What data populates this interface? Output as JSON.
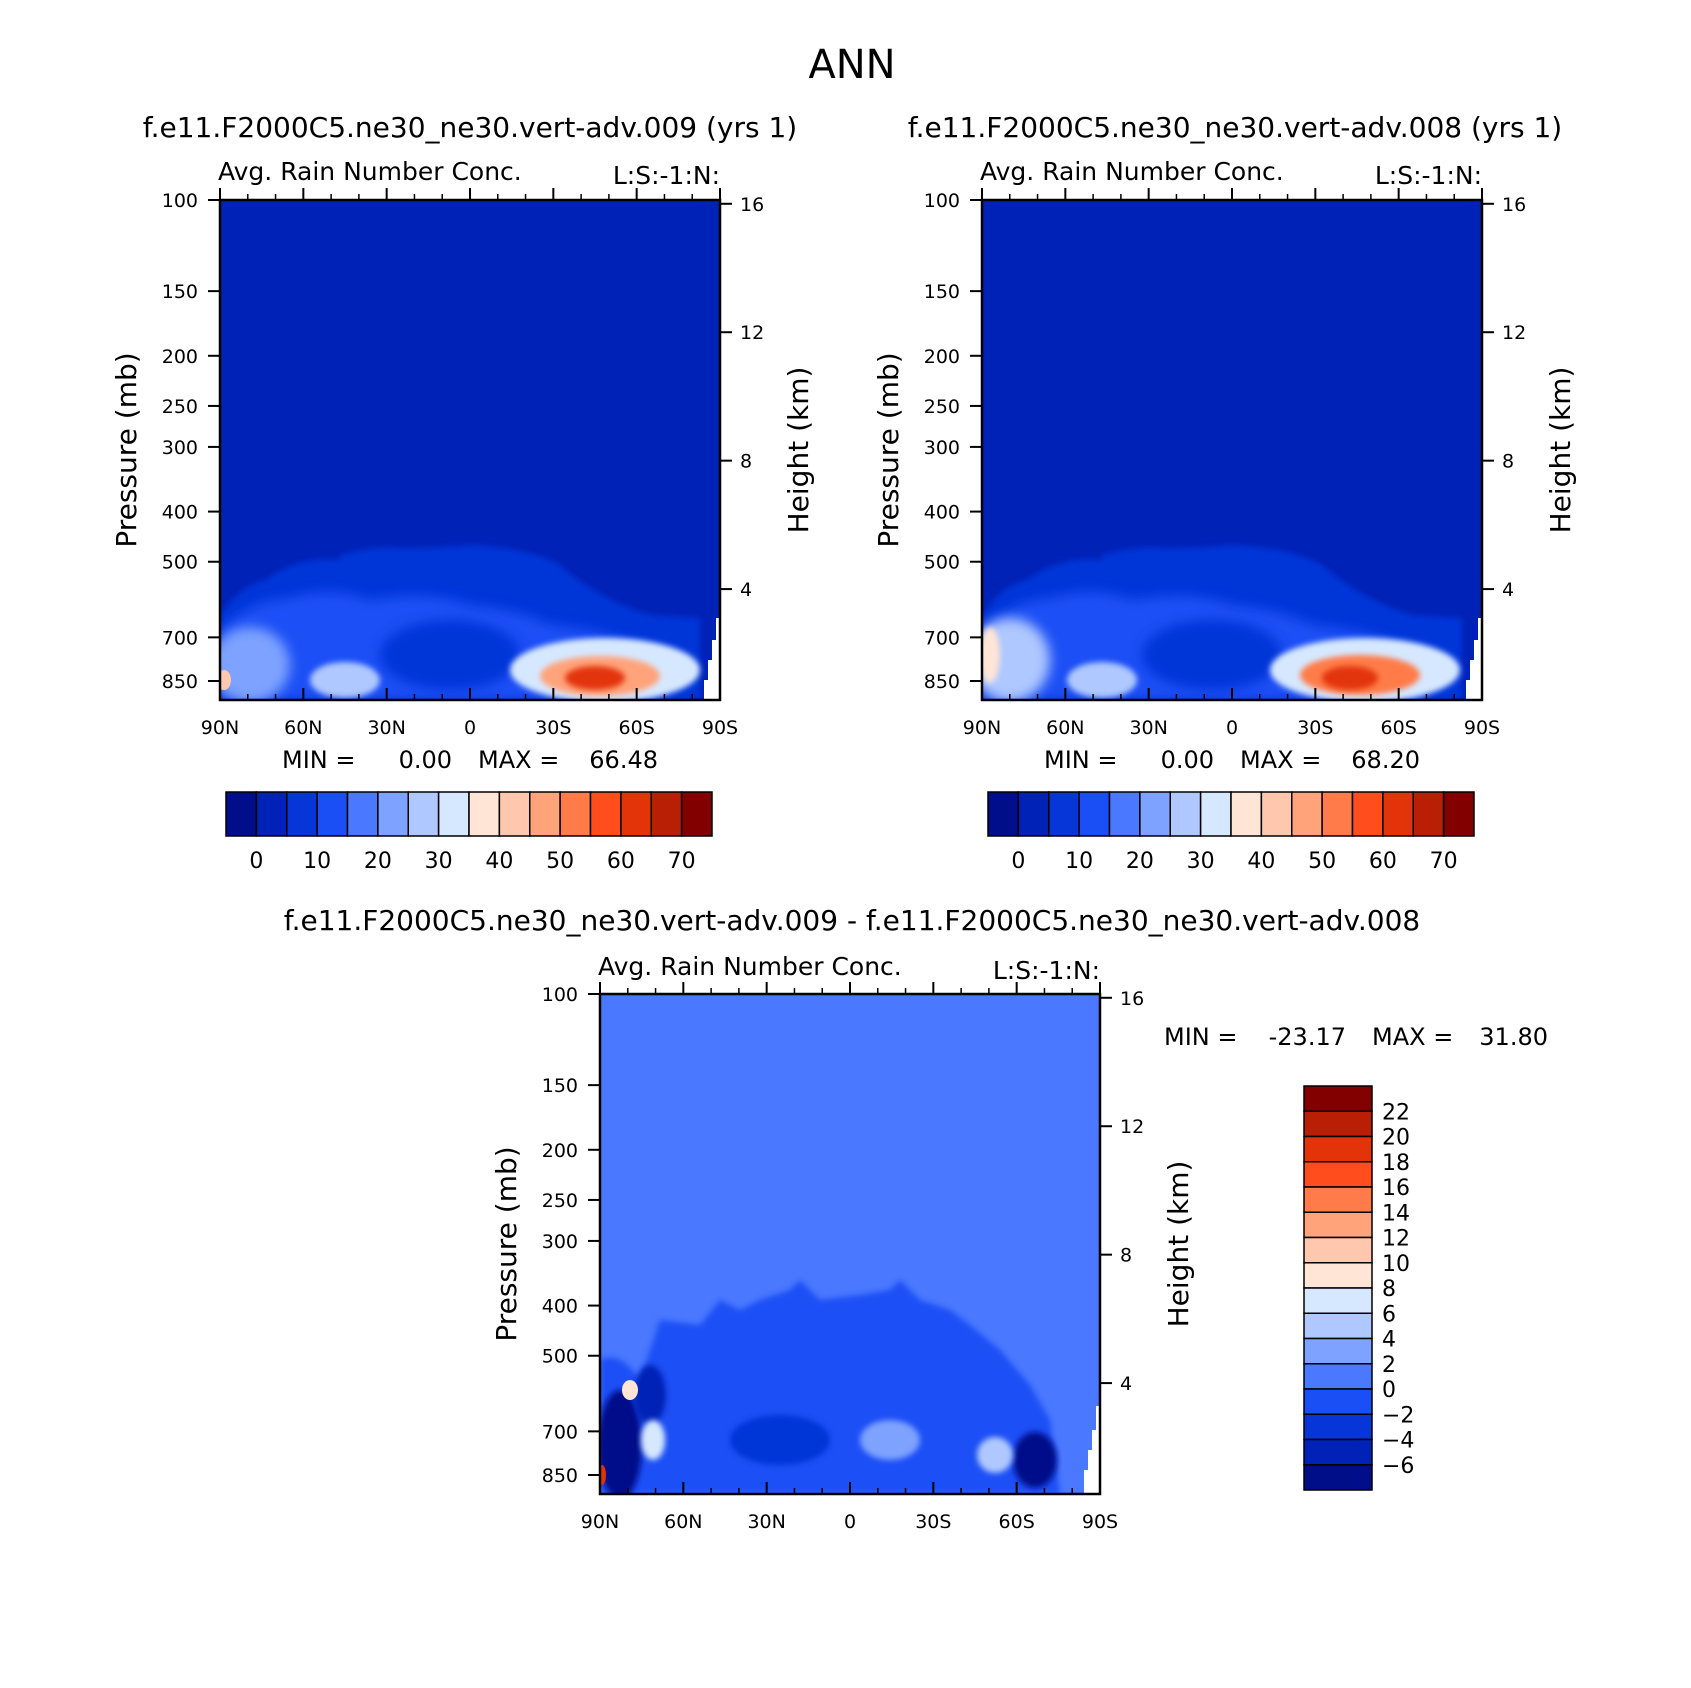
{
  "figure_title": "ANN",
  "chart_data": [
    {
      "type": "heatmap",
      "title": "f.e11.F2000C5.ne30_ne30.vert-adv.009 (yrs 1)",
      "subtitle": "Avg. Rain Number Conc.",
      "units_label": "L:S:-1:N:",
      "xlabel": "",
      "ylabel": "Pressure (mb)",
      "y2label": "Height (km)",
      "x_ticks": [
        "90N",
        "60N",
        "30N",
        "0",
        "30S",
        "60S",
        "90S"
      ],
      "y_ticks": [
        "100",
        "150",
        "200",
        "250",
        "300",
        "400",
        "500",
        "700",
        "850"
      ],
      "y2_ticks": [
        "16",
        "12",
        "8",
        "4"
      ],
      "ylim": [
        100,
        925
      ],
      "y_scale": "log",
      "stats": {
        "min_label": "MIN =",
        "min": "0.00",
        "max_label": "MAX =",
        "max": "66.48"
      },
      "colorbar": {
        "orientation": "horizontal",
        "labels": [
          "0",
          "10",
          "20",
          "30",
          "40",
          "50",
          "60",
          "70"
        ],
        "colors": [
          "#000e8a",
          "#0022b6",
          "#0635d8",
          "#1a4ff5",
          "#4a78ff",
          "#7da2ff",
          "#afc8ff",
          "#d6e8ff",
          "#ffe5d5",
          "#ffc7ad",
          "#ffa37a",
          "#ff7b49",
          "#ff4d1e",
          "#e33409",
          "#b81f05",
          "#820000"
        ]
      },
      "features": [
        {
          "lat": -45,
          "p": 850,
          "value": 66.48
        },
        {
          "lat": 85,
          "p": 850,
          "value": 38
        },
        {
          "lat": 55,
          "p": 850,
          "value": 32
        }
      ]
    },
    {
      "type": "heatmap",
      "title": "f.e11.F2000C5.ne30_ne30.vert-adv.008 (yrs 1)",
      "subtitle": "Avg. Rain Number Conc.",
      "units_label": "L:S:-1:N:",
      "xlabel": "",
      "ylabel": "Pressure (mb)",
      "y2label": "Height (km)",
      "x_ticks": [
        "90N",
        "60N",
        "30N",
        "0",
        "30S",
        "60S",
        "90S"
      ],
      "y_ticks": [
        "100",
        "150",
        "200",
        "250",
        "300",
        "400",
        "500",
        "700",
        "850"
      ],
      "y2_ticks": [
        "16",
        "12",
        "8",
        "4"
      ],
      "ylim": [
        100,
        925
      ],
      "y_scale": "log",
      "stats": {
        "min_label": "MIN =",
        "min": "0.00",
        "max_label": "MAX =",
        "max": "68.20"
      },
      "colorbar": {
        "orientation": "horizontal",
        "labels": [
          "0",
          "10",
          "20",
          "30",
          "40",
          "50",
          "60",
          "70"
        ],
        "colors": [
          "#000e8a",
          "#0022b6",
          "#0635d8",
          "#1a4ff5",
          "#4a78ff",
          "#7da2ff",
          "#afc8ff",
          "#d6e8ff",
          "#ffe5d5",
          "#ffc7ad",
          "#ffa37a",
          "#ff7b49",
          "#ff4d1e",
          "#e33409",
          "#b81f05",
          "#820000"
        ]
      },
      "features": [
        {
          "lat": -42,
          "p": 850,
          "value": 68.2
        },
        {
          "lat": 88,
          "p": 780,
          "value": 40
        },
        {
          "lat": 55,
          "p": 850,
          "value": 32
        }
      ]
    },
    {
      "type": "heatmap",
      "title": "f.e11.F2000C5.ne30_ne30.vert-adv.009 - f.e11.F2000C5.ne30_ne30.vert-adv.008",
      "subtitle": "Avg. Rain Number Conc.",
      "units_label": "L:S:-1:N:",
      "xlabel": "",
      "ylabel": "Pressure (mb)",
      "y2label": "Height (km)",
      "x_ticks": [
        "90N",
        "60N",
        "30N",
        "0",
        "30S",
        "60S",
        "90S"
      ],
      "y_ticks": [
        "100",
        "150",
        "200",
        "250",
        "300",
        "400",
        "500",
        "700",
        "850"
      ],
      "y2_ticks": [
        "16",
        "12",
        "8",
        "4"
      ],
      "ylim": [
        100,
        925
      ],
      "y_scale": "log",
      "stats": {
        "min_label": "MIN =",
        "min": "-23.17",
        "max_label": "MAX =",
        "max": "31.80"
      },
      "colorbar": {
        "orientation": "vertical",
        "labels": [
          "22",
          "20",
          "18",
          "16",
          "14",
          "12",
          "10",
          "8",
          "6",
          "4",
          "2",
          "0",
          "-2",
          "-4",
          "-6"
        ],
        "colors": [
          "#820000",
          "#b81f05",
          "#e33409",
          "#ff4d1e",
          "#ff7b49",
          "#ffa37a",
          "#ffc7ad",
          "#ffe5d5",
          "#d6e8ff",
          "#afc8ff",
          "#7da2ff",
          "#4a78ff",
          "#1a4ff5",
          "#0635d8",
          "#0022b6",
          "#000e8a"
        ]
      },
      "features": [
        {
          "lat": 85,
          "p": 800,
          "value": -23.17
        },
        {
          "lat": -68,
          "p": 830,
          "value": -10
        },
        {
          "lat": 78,
          "p": 730,
          "value": 10
        },
        {
          "lat": 90,
          "p": 850,
          "value": 31.8
        }
      ]
    }
  ]
}
